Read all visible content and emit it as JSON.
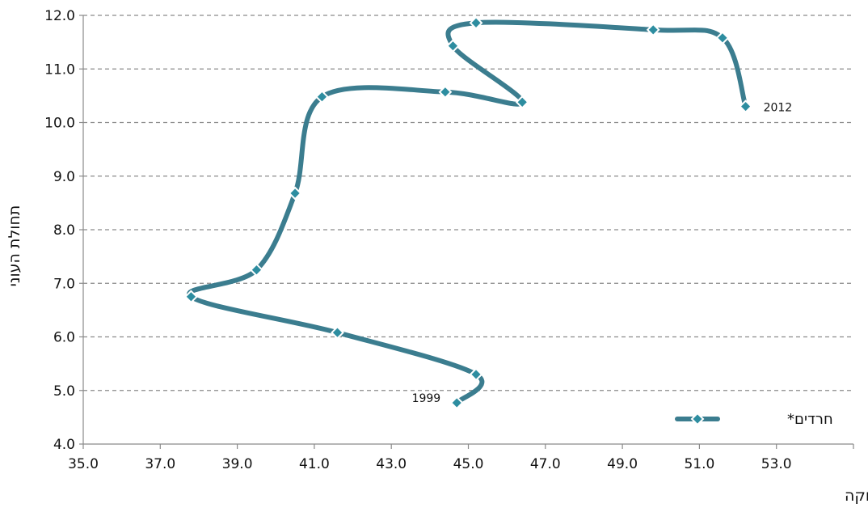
{
  "chart_data": {
    "type": "line",
    "title": "",
    "xlabel": "שיעור תעסוקה",
    "ylabel": "תחולת העוני",
    "xlim": [
      35.0,
      55.0
    ],
    "ylim": [
      4.0,
      12.0
    ],
    "x_ticks": [
      "35.0",
      "37.0",
      "39.0",
      "41.0",
      "43.0",
      "45.0",
      "47.0",
      "49.0",
      "51.0",
      "53.0"
    ],
    "y_ticks": [
      "4.0",
      "5.0",
      "6.0",
      "7.0",
      "8.0",
      "9.0",
      "10.0",
      "11.0",
      "12.0"
    ],
    "grid": "horizontal-dashed",
    "legend_position": "bottom-right",
    "series": [
      {
        "name": "חרדים*",
        "color": "#3b7d8f",
        "marker_color": "#2d8da0",
        "marker": "diamond-icon",
        "points": [
          {
            "x": 44.7,
            "y": 4.77
          },
          {
            "x": 45.2,
            "y": 5.3
          },
          {
            "x": 41.6,
            "y": 6.08
          },
          {
            "x": 37.8,
            "y": 6.75
          },
          {
            "x": 39.5,
            "y": 7.25
          },
          {
            "x": 40.5,
            "y": 8.68
          },
          {
            "x": 41.2,
            "y": 10.48
          },
          {
            "x": 44.4,
            "y": 10.57
          },
          {
            "x": 46.4,
            "y": 10.38
          },
          {
            "x": 44.6,
            "y": 11.43
          },
          {
            "x": 45.2,
            "y": 11.86
          },
          {
            "x": 49.8,
            "y": 11.73
          },
          {
            "x": 51.6,
            "y": 11.58
          },
          {
            "x": 52.2,
            "y": 10.3
          }
        ]
      }
    ],
    "annotations": [
      {
        "text": "1999",
        "point_index": 0,
        "side": "left"
      },
      {
        "text": "2012",
        "point_index": 13,
        "side": "right"
      }
    ]
  }
}
